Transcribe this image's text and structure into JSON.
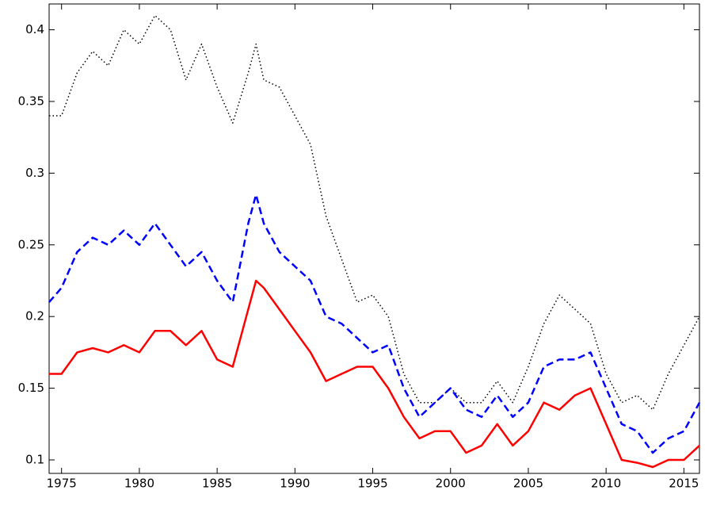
{
  "chart_data": {
    "type": "line",
    "x": [
      1974.2,
      1975,
      1976,
      1977,
      1978,
      1979,
      1980,
      1981,
      1982,
      1983,
      1984,
      1985,
      1986,
      1987,
      1987.5,
      1988,
      1989,
      1990,
      1991,
      1992,
      1993,
      1994,
      1995,
      1996,
      1997,
      1998,
      1999,
      2000,
      2001,
      2002,
      2003,
      2004,
      2005,
      2006,
      2007,
      2008,
      2009,
      2010,
      2011,
      2012,
      2013,
      2014,
      2015,
      2016
    ],
    "series": [
      {
        "color": "#000000",
        "style": "dotted",
        "values": [
          0.34,
          0.34,
          0.37,
          0.385,
          0.375,
          0.4,
          0.39,
          0.41,
          0.4,
          0.365,
          0.39,
          0.36,
          0.335,
          0.37,
          0.39,
          0.365,
          0.36,
          0.34,
          0.32,
          0.27,
          0.24,
          0.21,
          0.215,
          0.2,
          0.16,
          0.14,
          0.14,
          0.15,
          0.14,
          0.14,
          0.155,
          0.14,
          0.165,
          0.195,
          0.215,
          0.205,
          0.195,
          0.16,
          0.14,
          0.145,
          0.135,
          0.16,
          0.18,
          0.2
        ]
      },
      {
        "color": "#0000ff",
        "style": "dashed",
        "values": [
          0.21,
          0.22,
          0.245,
          0.255,
          0.25,
          0.26,
          0.25,
          0.265,
          0.25,
          0.235,
          0.245,
          0.225,
          0.21,
          0.265,
          0.285,
          0.265,
          0.245,
          0.235,
          0.225,
          0.2,
          0.195,
          0.185,
          0.175,
          0.18,
          0.15,
          0.13,
          0.14,
          0.15,
          0.135,
          0.13,
          0.145,
          0.13,
          0.14,
          0.165,
          0.17,
          0.17,
          0.175,
          0.15,
          0.125,
          0.12,
          0.105,
          0.115,
          0.12,
          0.14
        ]
      },
      {
        "color": "#ff0000",
        "style": "solid",
        "values": [
          0.16,
          0.16,
          0.175,
          0.178,
          0.175,
          0.18,
          0.175,
          0.19,
          0.19,
          0.18,
          0.19,
          0.17,
          0.165,
          0.205,
          0.225,
          0.22,
          0.205,
          0.19,
          0.175,
          0.155,
          0.16,
          0.165,
          0.165,
          0.15,
          0.13,
          0.115,
          0.12,
          0.12,
          0.105,
          0.11,
          0.125,
          0.11,
          0.12,
          0.14,
          0.135,
          0.145,
          0.15,
          0.125,
          0.1,
          0.098,
          0.095,
          0.1,
          0.1,
          0.11
        ]
      }
    ],
    "xlim": [
      1974.2,
      2016
    ],
    "ylim": [
      0.0906,
      0.418
    ],
    "xticks": [
      1975,
      1980,
      1985,
      1990,
      1995,
      2000,
      2005,
      2010,
      2015
    ],
    "yticks": [
      0.1,
      0.15,
      0.2,
      0.25,
      0.3,
      0.35,
      0.4
    ],
    "grid": false
  }
}
